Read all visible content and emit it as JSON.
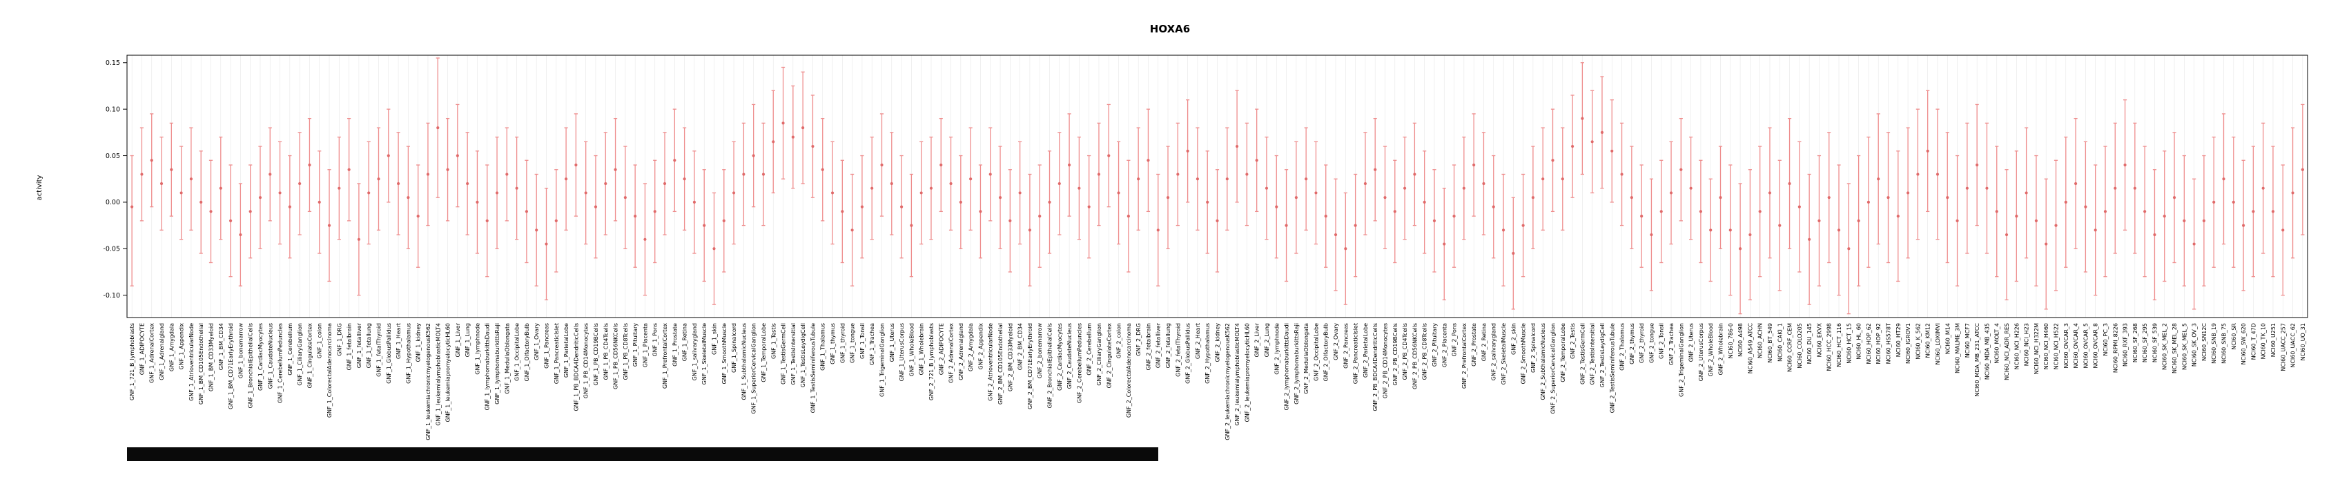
{
  "chart_data": {
    "type": "scatter",
    "subtype": "point-with-errorbars",
    "title": "HOXA6",
    "xlabel": "",
    "ylabel": "activity",
    "ylim": [
      -0.124,
      0.158
    ],
    "yticks": [
      -0.1,
      -0.05,
      0.0,
      0.05,
      0.1,
      0.15
    ],
    "ytick_labels": [
      "-0.10",
      "-0.05",
      "0.00",
      "0.05",
      "0.10",
      "0.15"
    ],
    "grid": "vertical-per-category",
    "legend": "none",
    "colors": {
      "errorbar": "#ee8c8c",
      "point": "#e06a6a",
      "grid": "#e7e7e7",
      "axis": "#000000",
      "background": "#ffffff"
    },
    "x_label_groups": {
      "gnf_prefixes": [
        "GNF_1_",
        "GNF_2_"
      ],
      "gnf_tissues": [
        "721_B_lymphoblasts",
        "ADIPOCYTE",
        "AdrenalCortex",
        "Adrenalgland",
        "Amygdala",
        "Appendix",
        "AtrioventricularNode",
        "BM_CD105Endothelial",
        "BM_CD33Myeloid",
        "BM_CD34",
        "BM_CD71EarlyErythroid",
        "bonemarrow",
        "BronchialEpithelialCells",
        "CardiacMyocytes",
        "CaudateNucleus",
        "CerebellumPeduncles",
        "Cerebellum",
        "CiliaryGanglion",
        "CingulateCortex",
        "colon",
        "ColorectalAdenocarcinoma",
        "DRG",
        "fetalbrain",
        "fetalliver",
        "fetallung",
        "fetalThyroid",
        "GlobusPallidus",
        "Heart",
        "Hypothalamus",
        "kidney",
        "leukemiachronicmyelogenousK562",
        "leukemialymphoblasticMOLT4",
        "leukemiapromyelocyticHL60",
        "Liver",
        "Lung",
        "lymphnode",
        "lymphomaburkittsDaudi",
        "lymphomaburkittsRaji",
        "MedullaOblongata",
        "OccipitalLobe",
        "OlfactoryBulb",
        "Ovary",
        "Pancreas",
        "PancreaticIslet",
        "ParietalLobe",
        "PB_BDCA4DendriticCells",
        "PB_CD14Monocytes",
        "PB_CD19BCells",
        "PB_CD4Tcells",
        "PB_CD56NKCells",
        "PB_CD8Tcells",
        "Pituitary",
        "Placenta",
        "Pons",
        "PrefrontalCortex",
        "Prostate",
        "Retina",
        "salivarygland",
        "SkeletalMuscle",
        "skin",
        "SmoothMuscle",
        "Spinalcord",
        "SubthalamicNucleus",
        "SuperiorCervicalGanglion",
        "TemporalLobe",
        "Testis",
        "TestisGermCell",
        "TestisIntersitial",
        "TestisLeydigCell",
        "TestisSeminiferousTubule",
        "Thalamus",
        "thymus",
        "thyroid",
        "tongue",
        "Tonsil",
        "Trachea",
        "TrigeminalGanglion",
        "Uterus",
        "UterusCorpus",
        "WholeBlood",
        "Wholebrain"
      ],
      "nci60": [
        "NCI60_786-0",
        "NCI60_A498",
        "NCI60_A549_ATCC",
        "NCI60_ACHN",
        "NCI60_BT_549",
        "NCI60_CAKI_1",
        "NCI60_CCRF_CEM",
        "NCI60_COLO205",
        "NCI60_DU_145",
        "NCI60_EKVX",
        "NCI60_HCC_2998",
        "NCI60_HCT_116",
        "NCI60_HCT_15",
        "NCI60_HL_60",
        "NCI60_HOP_62",
        "NCI60_HOP_92",
        "NCI60_HS578T",
        "NCI60_HT29",
        "NCI60_IGROV1",
        "NCI60_K_562",
        "NCI60_KM12",
        "NCI60_LOXIMVI",
        "NCI60_M14",
        "NCI60_MALME_3M",
        "NCI60_MCF7",
        "NCI60_MDA_MB_231_ATCC",
        "NCI60_MDA_MB_435",
        "NCI60_MOLT_4",
        "NCI60_NCI_ADR_RES",
        "NCI60_NCI_H226",
        "NCI60_NCI_H23",
        "NCI60_NCI_H322M",
        "NCI60_NCI_H460",
        "NCI60_NCI_H522",
        "NCI60_OVCAR_3",
        "NCI60_OVCAR_4",
        "NCI60_OVCAR_5",
        "NCI60_OVCAR_8",
        "NCI60_PC_3",
        "NCI60_RPMI_8226",
        "NCI60_RXF_393",
        "NCI60_SF_268",
        "NCI60_SF_295",
        "NCI60_SF_539",
        "NCI60_SK_MEL_2",
        "NCI60_SK_MEL_28",
        "NCI60_SK_MEL_5",
        "NCI60_SK_OV_3",
        "NCI60_SN12C",
        "NCI60_SNB_19",
        "NCI60_SNB_75",
        "NCI60_SR",
        "NCI60_SW_620",
        "NCI60_T_47D",
        "NCI60_TK_10",
        "NCI60_U251",
        "NCI60_UACC_257",
        "NCI60_UACC_62",
        "NCI60_UO_31"
      ]
    },
    "points_format": [
      "mean",
      "ci_lower",
      "ci_upper"
    ],
    "gnf1_points": [
      [
        -0.005,
        -0.09,
        0.05
      ],
      [
        0.03,
        -0.02,
        0.08
      ],
      [
        0.045,
        -0.005,
        0.095
      ],
      [
        0.02,
        -0.03,
        0.07
      ],
      [
        0.035,
        -0.015,
        0.085
      ],
      [
        0.01,
        -0.04,
        0.06
      ],
      [
        0.025,
        -0.03,
        0.08
      ],
      [
        0,
        -0.055,
        0.055
      ],
      [
        -0.01,
        -0.065,
        0.045
      ],
      [
        0.015,
        -0.04,
        0.07
      ],
      [
        -0.02,
        -0.08,
        0.04
      ],
      [
        -0.035,
        -0.09,
        0.02
      ],
      [
        -0.01,
        -0.06,
        0.04
      ],
      [
        0.005,
        -0.05,
        0.06
      ],
      [
        0.03,
        -0.02,
        0.08
      ],
      [
        0.01,
        -0.045,
        0.065
      ],
      [
        -0.005,
        -0.06,
        0.05
      ],
      [
        0.02,
        -0.035,
        0.075
      ],
      [
        0.04,
        -0.01,
        0.09
      ],
      [
        0,
        -0.055,
        0.055
      ],
      [
        -0.025,
        -0.085,
        0.035
      ],
      [
        0.015,
        -0.04,
        0.07
      ],
      [
        0.035,
        -0.02,
        0.09
      ],
      [
        -0.04,
        -0.1,
        0.02
      ],
      [
        0.01,
        -0.045,
        0.065
      ],
      [
        0.025,
        -0.03,
        0.08
      ],
      [
        0.05,
        0,
        0.1
      ],
      [
        0.02,
        -0.035,
        0.075
      ],
      [
        0.005,
        -0.05,
        0.06
      ],
      [
        -0.015,
        -0.07,
        0.04
      ],
      [
        0.03,
        -0.025,
        0.085
      ],
      [
        0.08,
        0.005,
        0.155
      ],
      [
        0.035,
        -0.02,
        0.09
      ],
      [
        0.05,
        -0.005,
        0.105
      ],
      [
        0.02,
        -0.035,
        0.075
      ],
      [
        0,
        -0.055,
        0.055
      ],
      [
        -0.02,
        -0.08,
        0.04
      ],
      [
        0.01,
        -0.05,
        0.07
      ],
      [
        0.03,
        -0.02,
        0.08
      ],
      [
        0.015,
        -0.04,
        0.07
      ],
      [
        -0.01,
        -0.065,
        0.045
      ],
      [
        -0.03,
        -0.09,
        0.03
      ],
      [
        -0.045,
        -0.105,
        0.015
      ],
      [
        -0.02,
        -0.075,
        0.035
      ],
      [
        0.025,
        -0.03,
        0.08
      ],
      [
        0.04,
        -0.015,
        0.095
      ],
      [
        0.01,
        -0.045,
        0.065
      ],
      [
        -0.005,
        -0.06,
        0.05
      ],
      [
        0.02,
        -0.035,
        0.075
      ],
      [
        0.035,
        -0.02,
        0.09
      ],
      [
        0.005,
        -0.05,
        0.06
      ],
      [
        -0.015,
        -0.07,
        0.04
      ],
      [
        -0.04,
        -0.1,
        0.02
      ],
      [
        -0.01,
        -0.065,
        0.045
      ],
      [
        0.02,
        -0.035,
        0.075
      ],
      [
        0.045,
        -0.01,
        0.1
      ],
      [
        0.025,
        -0.03,
        0.08
      ],
      [
        0,
        -0.055,
        0.055
      ],
      [
        -0.025,
        -0.085,
        0.035
      ],
      [
        -0.05,
        -0.11,
        0.01
      ],
      [
        -0.02,
        -0.075,
        0.035
      ],
      [
        0.01,
        -0.045,
        0.065
      ],
      [
        0.03,
        -0.025,
        0.085
      ],
      [
        0.05,
        -0.005,
        0.105
      ],
      [
        0.03,
        -0.025,
        0.085
      ],
      [
        0.065,
        0.01,
        0.12
      ],
      [
        0.085,
        0.025,
        0.145
      ],
      [
        0.07,
        0.015,
        0.125
      ],
      [
        0.08,
        0.02,
        0.14
      ],
      [
        0.06,
        0.005,
        0.115
      ],
      [
        0.035,
        -0.02,
        0.09
      ],
      [
        0.01,
        -0.045,
        0.065
      ],
      [
        -0.01,
        -0.065,
        0.045
      ],
      [
        -0.03,
        -0.09,
        0.03
      ],
      [
        -0.005,
        -0.06,
        0.05
      ],
      [
        0.015,
        -0.04,
        0.07
      ],
      [
        0.04,
        -0.015,
        0.095
      ],
      [
        0.02,
        -0.035,
        0.075
      ],
      [
        -0.005,
        -0.06,
        0.05
      ],
      [
        -0.025,
        -0.08,
        0.03
      ],
      [
        0.01,
        -0.045,
        0.065
      ]
    ],
    "gnf2_points": [
      [
        0.015,
        -0.04,
        0.07
      ],
      [
        0.04,
        -0.01,
        0.09
      ],
      [
        0.02,
        -0.03,
        0.07
      ],
      [
        0,
        -0.05,
        0.05
      ],
      [
        0.025,
        -0.03,
        0.08
      ],
      [
        -0.01,
        -0.06,
        0.04
      ],
      [
        0.03,
        -0.02,
        0.08
      ],
      [
        0.005,
        -0.05,
        0.06
      ],
      [
        -0.02,
        -0.075,
        0.035
      ],
      [
        0.01,
        -0.045,
        0.065
      ],
      [
        -0.03,
        -0.09,
        0.03
      ],
      [
        -0.015,
        -0.07,
        0.04
      ],
      [
        0,
        -0.055,
        0.055
      ],
      [
        0.02,
        -0.035,
        0.075
      ],
      [
        0.04,
        -0.015,
        0.095
      ],
      [
        0.015,
        -0.04,
        0.07
      ],
      [
        -0.005,
        -0.06,
        0.05
      ],
      [
        0.03,
        -0.025,
        0.085
      ],
      [
        0.05,
        -0.005,
        0.105
      ],
      [
        0.01,
        -0.045,
        0.065
      ],
      [
        -0.015,
        -0.075,
        0.045
      ],
      [
        0.025,
        -0.03,
        0.08
      ],
      [
        0.045,
        -0.01,
        0.1
      ],
      [
        -0.03,
        -0.09,
        0.03
      ],
      [
        0.005,
        -0.05,
        0.06
      ],
      [
        0.03,
        -0.025,
        0.085
      ],
      [
        0.055,
        0,
        0.11
      ],
      [
        0.025,
        -0.03,
        0.08
      ],
      [
        0,
        -0.055,
        0.055
      ],
      [
        -0.02,
        -0.075,
        0.035
      ],
      [
        0.025,
        -0.03,
        0.08
      ],
      [
        0.06,
        0,
        0.12
      ],
      [
        0.03,
        -0.025,
        0.085
      ],
      [
        0.045,
        -0.01,
        0.1
      ],
      [
        0.015,
        -0.04,
        0.07
      ],
      [
        -0.005,
        -0.06,
        0.05
      ],
      [
        -0.025,
        -0.085,
        0.035
      ],
      [
        0.005,
        -0.055,
        0.065
      ],
      [
        0.025,
        -0.03,
        0.08
      ],
      [
        0.01,
        -0.045,
        0.065
      ],
      [
        -0.015,
        -0.07,
        0.04
      ],
      [
        -0.035,
        -0.095,
        0.025
      ],
      [
        -0.05,
        -0.11,
        0.01
      ],
      [
        -0.025,
        -0.08,
        0.03
      ],
      [
        0.02,
        -0.035,
        0.075
      ],
      [
        0.035,
        -0.02,
        0.09
      ],
      [
        0.005,
        -0.05,
        0.06
      ],
      [
        -0.01,
        -0.065,
        0.045
      ],
      [
        0.015,
        -0.04,
        0.07
      ],
      [
        0.03,
        -0.025,
        0.085
      ],
      [
        0,
        -0.055,
        0.055
      ],
      [
        -0.02,
        -0.075,
        0.035
      ],
      [
        -0.045,
        -0.105,
        0.015
      ],
      [
        -0.015,
        -0.07,
        0.04
      ],
      [
        0.015,
        -0.04,
        0.07
      ],
      [
        0.04,
        -0.015,
        0.095
      ],
      [
        0.02,
        -0.035,
        0.075
      ],
      [
        -0.005,
        -0.06,
        0.05
      ],
      [
        -0.03,
        -0.09,
        0.03
      ],
      [
        -0.055,
        -0.115,
        0.005
      ],
      [
        -0.025,
        -0.08,
        0.03
      ],
      [
        0.005,
        -0.05,
        0.06
      ],
      [
        0.025,
        -0.03,
        0.08
      ],
      [
        0.045,
        -0.01,
        0.1
      ],
      [
        0.025,
        -0.03,
        0.08
      ],
      [
        0.06,
        0.005,
        0.115
      ],
      [
        0.09,
        0.03,
        0.15
      ],
      [
        0.065,
        0.01,
        0.12
      ],
      [
        0.075,
        0.015,
        0.135
      ],
      [
        0.055,
        0,
        0.11
      ],
      [
        0.03,
        -0.025,
        0.085
      ],
      [
        0.005,
        -0.05,
        0.06
      ],
      [
        -0.015,
        -0.07,
        0.04
      ],
      [
        -0.035,
        -0.095,
        0.025
      ],
      [
        -0.01,
        -0.065,
        0.045
      ],
      [
        0.01,
        -0.045,
        0.065
      ],
      [
        0.035,
        -0.02,
        0.09
      ],
      [
        0.015,
        -0.04,
        0.07
      ],
      [
        -0.01,
        -0.065,
        0.045
      ],
      [
        -0.03,
        -0.085,
        0.025
      ],
      [
        0.005,
        -0.05,
        0.06
      ]
    ],
    "nci60_points": [
      [
        -0.03,
        -0.1,
        0.04
      ],
      [
        -0.05,
        -0.12,
        0.02
      ],
      [
        -0.035,
        -0.105,
        0.035
      ],
      [
        -0.01,
        -0.08,
        0.06
      ],
      [
        0.01,
        -0.06,
        0.08
      ],
      [
        -0.025,
        -0.095,
        0.045
      ],
      [
        0.02,
        -0.05,
        0.09
      ],
      [
        -0.005,
        -0.075,
        0.065
      ],
      [
        -0.04,
        -0.11,
        0.03
      ],
      [
        -0.02,
        -0.09,
        0.05
      ],
      [
        0.005,
        -0.065,
        0.075
      ],
      [
        -0.03,
        -0.1,
        0.04
      ],
      [
        -0.05,
        -0.12,
        0.02
      ],
      [
        -0.02,
        -0.09,
        0.05
      ],
      [
        0,
        -0.07,
        0.07
      ],
      [
        0.025,
        -0.045,
        0.095
      ],
      [
        0.005,
        -0.065,
        0.075
      ],
      [
        -0.015,
        -0.085,
        0.055
      ],
      [
        0.01,
        -0.06,
        0.08
      ],
      [
        0.03,
        -0.04,
        0.1
      ],
      [
        0.055,
        -0.01,
        0.12
      ],
      [
        0.03,
        -0.04,
        0.1
      ],
      [
        0.005,
        -0.065,
        0.075
      ],
      [
        -0.02,
        -0.09,
        0.05
      ],
      [
        0.015,
        -0.055,
        0.085
      ],
      [
        0.04,
        -0.025,
        0.105
      ],
      [
        0.015,
        -0.055,
        0.085
      ],
      [
        -0.01,
        -0.08,
        0.06
      ],
      [
        -0.035,
        -0.105,
        0.035
      ],
      [
        -0.015,
        -0.085,
        0.055
      ],
      [
        0.01,
        -0.06,
        0.08
      ],
      [
        -0.02,
        -0.09,
        0.05
      ],
      [
        -0.045,
        -0.115,
        0.025
      ],
      [
        -0.025,
        -0.095,
        0.045
      ],
      [
        0,
        -0.07,
        0.07
      ],
      [
        0.02,
        -0.05,
        0.09
      ],
      [
        -0.005,
        -0.075,
        0.065
      ],
      [
        -0.03,
        -0.1,
        0.04
      ],
      [
        -0.01,
        -0.08,
        0.06
      ],
      [
        0.015,
        -0.055,
        0.085
      ],
      [
        0.04,
        -0.03,
        0.11
      ],
      [
        0.015,
        -0.055,
        0.085
      ],
      [
        -0.01,
        -0.08,
        0.06
      ],
      [
        -0.035,
        -0.105,
        0.035
      ],
      [
        -0.015,
        -0.085,
        0.055
      ],
      [
        0.005,
        -0.065,
        0.075
      ],
      [
        -0.02,
        -0.09,
        0.05
      ],
      [
        -0.045,
        -0.115,
        0.025
      ],
      [
        -0.02,
        -0.09,
        0.05
      ],
      [
        0,
        -0.07,
        0.07
      ],
      [
        0.025,
        -0.045,
        0.095
      ],
      [
        0,
        -0.07,
        0.07
      ],
      [
        -0.025,
        -0.095,
        0.045
      ],
      [
        -0.01,
        -0.08,
        0.06
      ],
      [
        0.015,
        -0.055,
        0.085
      ],
      [
        -0.01,
        -0.08,
        0.06
      ],
      [
        -0.03,
        -0.1,
        0.04
      ],
      [
        0.01,
        -0.06,
        0.08
      ],
      [
        0.035,
        -0.035,
        0.105
      ]
    ]
  },
  "decor": {
    "bottom_bar_color": "#0a0a0a"
  }
}
